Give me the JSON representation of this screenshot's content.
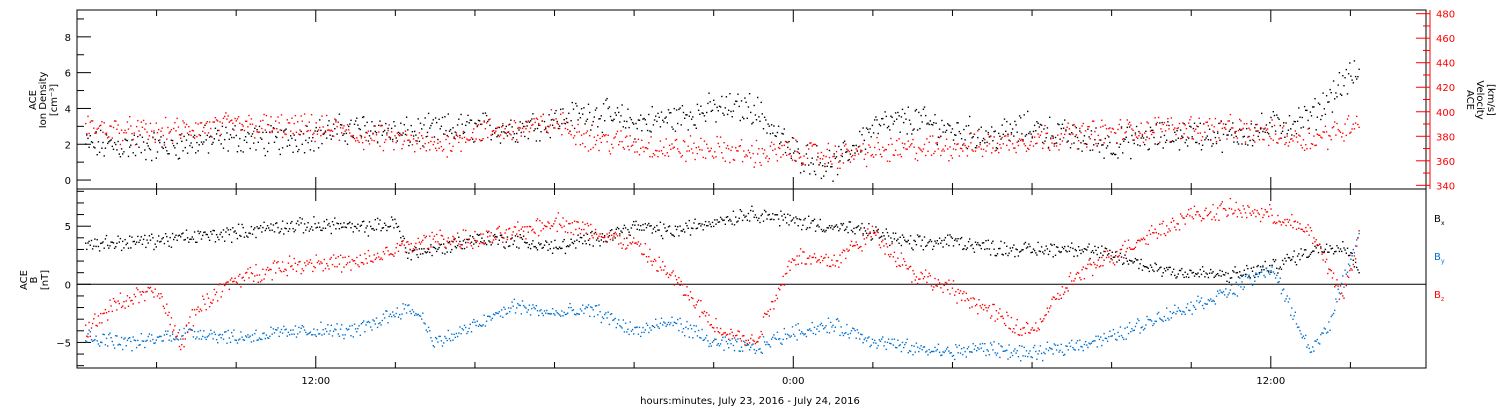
{
  "chart_data": [
    {
      "type": "scatter",
      "panel": "top",
      "ylabel_left": [
        "ACE",
        "Ion Density",
        "[cm⁻³]"
      ],
      "ylabel_right": [
        "ACE",
        "Velocity",
        "[km/s]"
      ],
      "ylim_left": [
        -0.5,
        9.5
      ],
      "yticks_left": [
        "0",
        "2",
        "4",
        "6",
        "8"
      ],
      "ylim_right": [
        337,
        483
      ],
      "yticks_right": [
        "340",
        "360",
        "380",
        "400",
        "420",
        "440",
        "460",
        "480"
      ],
      "x_range_hours": [
        -5,
        27.2
      ],
      "series": [
        {
          "color": "#000000",
          "axis": "left",
          "keypoints": [
            [
              -4.8,
              2.0
            ],
            [
              -3,
              1.9
            ],
            [
              -1,
              2.4
            ],
            [
              0,
              2.2
            ],
            [
              1.5,
              2.8
            ],
            [
              2.5,
              3.0
            ],
            [
              3,
              2.6
            ],
            [
              5,
              3.0
            ],
            [
              6,
              2.9
            ],
            [
              7,
              3.4
            ],
            [
              8,
              3.8
            ],
            [
              9,
              3.2
            ],
            [
              10,
              3.5
            ],
            [
              11,
              4.0
            ],
            [
              12,
              4.1
            ],
            [
              13,
              1.5
            ],
            [
              14,
              0.8
            ],
            [
              15,
              3.0
            ],
            [
              16,
              3.4
            ],
            [
              17,
              2.8
            ],
            [
              18,
              2.5
            ],
            [
              19,
              3.0
            ],
            [
              20,
              2.4
            ],
            [
              21,
              2.0
            ],
            [
              22,
              2.4
            ],
            [
              23,
              2.6
            ],
            [
              24,
              2.5
            ],
            [
              25,
              3.0
            ],
            [
              26,
              3.5
            ],
            [
              26.8,
              5.5
            ],
            [
              27.2,
              6.0
            ]
          ]
        },
        {
          "color": "#ff0000",
          "axis": "right",
          "keypoints": [
            [
              -4.8,
              388
            ],
            [
              -3,
              383
            ],
            [
              -1,
              390
            ],
            [
              0,
              388
            ],
            [
              1.5,
              386
            ],
            [
              2,
              380
            ],
            [
              3,
              378
            ],
            [
              4,
              372
            ],
            [
              5,
              384
            ],
            [
              6,
              386
            ],
            [
              7,
              392
            ],
            [
              8,
              378
            ],
            [
              9,
              374
            ],
            [
              10,
              370
            ],
            [
              11,
              370
            ],
            [
              12,
              366
            ],
            [
              13,
              368
            ],
            [
              14,
              364
            ],
            [
              15,
              368
            ],
            [
              16,
              370
            ],
            [
              17,
              372
            ],
            [
              18,
              374
            ],
            [
              19,
              378
            ],
            [
              20,
              382
            ],
            [
              21,
              384
            ],
            [
              22,
              386
            ],
            [
              23,
              388
            ],
            [
              24,
              386
            ],
            [
              25,
              382
            ],
            [
              26,
              378
            ],
            [
              26.8,
              386
            ],
            [
              27.2,
              395
            ]
          ]
        }
      ]
    },
    {
      "type": "scatter",
      "panel": "bottom",
      "ylabel": [
        "ACE",
        "B",
        "[nT]"
      ],
      "ylim": [
        -7.2,
        8.2
      ],
      "yticks": [
        "−5",
        "0",
        "5"
      ],
      "zero_line": true,
      "x_range_hours": [
        -5,
        27.2
      ],
      "legend": [
        "B",
        "B",
        "B"
      ],
      "legend_subscripts": [
        "x",
        "y",
        "z"
      ],
      "legend_placement": "right",
      "series": [
        {
          "color": "#000000",
          "keypoints": [
            [
              -4.8,
              3.5
            ],
            [
              -3,
              3.8
            ],
            [
              -1,
              4.5
            ],
            [
              0,
              5.0
            ],
            [
              1.5,
              5.2
            ],
            [
              2,
              4.8
            ],
            [
              3,
              5.3
            ],
            [
              3.3,
              2.8
            ],
            [
              4,
              3.0
            ],
            [
              5,
              4.0
            ],
            [
              6,
              3.8
            ],
            [
              7,
              3.2
            ],
            [
              8,
              4.0
            ],
            [
              9,
              5.0
            ],
            [
              10,
              4.6
            ],
            [
              11,
              5.5
            ],
            [
              12,
              6.2
            ],
            [
              13,
              5.5
            ],
            [
              14,
              5.0
            ],
            [
              15,
              4.5
            ],
            [
              16,
              3.5
            ],
            [
              17,
              3.8
            ],
            [
              18,
              3.2
            ],
            [
              19,
              3.0
            ],
            [
              20,
              3.2
            ],
            [
              21,
              2.5
            ],
            [
              22,
              1.5
            ],
            [
              23,
              1.0
            ],
            [
              24,
              0.8
            ],
            [
              25,
              1.5
            ],
            [
              26,
              3.0
            ],
            [
              26.8,
              3.5
            ],
            [
              27.2,
              1.5
            ]
          ]
        },
        {
          "color": "#0070d0",
          "keypoints": [
            [
              -4.8,
              -4.5
            ],
            [
              -3.5,
              -5.0
            ],
            [
              -2.2,
              -4.0
            ],
            [
              -1,
              -4.5
            ],
            [
              0,
              -4.2
            ],
            [
              1,
              -3.9
            ],
            [
              2,
              -4.0
            ],
            [
              3.2,
              -2.0
            ],
            [
              3.6,
              -2.5
            ],
            [
              4,
              -5.0
            ],
            [
              5,
              -3.5
            ],
            [
              6,
              -1.8
            ],
            [
              7,
              -2.5
            ],
            [
              8,
              -2.2
            ],
            [
              9,
              -4.0
            ],
            [
              10,
              -3.2
            ],
            [
              11,
              -5.0
            ],
            [
              12,
              -5.5
            ],
            [
              13,
              -4.0
            ],
            [
              14,
              -3.5
            ],
            [
              15,
              -4.8
            ],
            [
              16,
              -5.5
            ],
            [
              17,
              -5.8
            ],
            [
              17.5,
              -5.5
            ],
            [
              18,
              -5.5
            ],
            [
              19,
              -6.0
            ],
            [
              20,
              -5.2
            ],
            [
              21,
              -4.5
            ],
            [
              22,
              -3.0
            ],
            [
              23,
              -1.8
            ],
            [
              24,
              -0.5
            ],
            [
              25,
              1.5
            ],
            [
              26,
              -5.8
            ],
            [
              26.5,
              -3.0
            ],
            [
              27.2,
              4.5
            ]
          ]
        },
        {
          "color": "#ff0000",
          "keypoints": [
            [
              -4.8,
              -4.0
            ],
            [
              -4,
              -1.5
            ],
            [
              -3,
              -0.5
            ],
            [
              -2.4,
              -5.2
            ],
            [
              -2,
              -2.0
            ],
            [
              -1,
              0.5
            ],
            [
              0,
              1.5
            ],
            [
              1,
              2.0
            ],
            [
              2,
              1.8
            ],
            [
              3,
              3.0
            ],
            [
              4,
              4.0
            ],
            [
              5,
              3.8
            ],
            [
              6,
              4.5
            ],
            [
              7,
              5.5
            ],
            [
              8,
              4.5
            ],
            [
              9,
              3.5
            ],
            [
              10,
              0.5
            ],
            [
              11,
              -3.5
            ],
            [
              12,
              -5.0
            ],
            [
              13,
              2.5
            ],
            [
              14,
              2.0
            ],
            [
              15,
              4.5
            ],
            [
              16,
              1.0
            ],
            [
              17,
              -0.5
            ],
            [
              17.8,
              -2.0
            ],
            [
              18.5,
              -3.5
            ],
            [
              19,
              -4.0
            ],
            [
              20,
              0.5
            ],
            [
              21,
              2.5
            ],
            [
              22,
              4.5
            ],
            [
              23,
              6.0
            ],
            [
              24,
              6.5
            ],
            [
              25,
              6.0
            ],
            [
              26,
              4.5
            ],
            [
              26.8,
              -1.0
            ],
            [
              27.2,
              4.0
            ]
          ]
        }
      ]
    }
  ],
  "xaxis": {
    "ticks": [
      {
        "hour": 12,
        "label": "12:00"
      },
      {
        "hour": 24,
        "label": "0:00"
      },
      {
        "hour": 36,
        "label": "12:00"
      }
    ],
    "xlim_hours": [
      6.0,
      39.9
    ],
    "minor_tick_step_hours": 2,
    "label": "hours:minutes, July 23, 2016 - July 24, 2016"
  },
  "colors": {
    "black": "#000000",
    "red": "#ff0000",
    "blue": "#0070d0",
    "frame": "#000000"
  }
}
